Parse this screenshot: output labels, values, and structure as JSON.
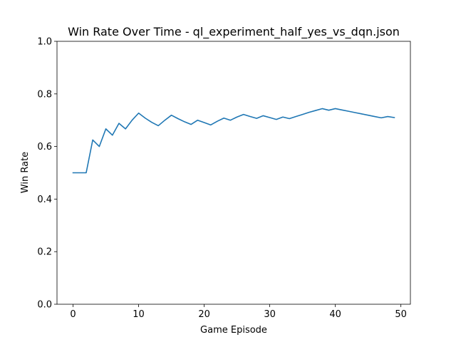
{
  "chart_data": {
    "type": "line",
    "title": "Win Rate Over Time - ql_experiment_half_yes_vs_dqn.json",
    "xlabel": "Game Episode",
    "ylabel": "Win Rate",
    "xlim": [
      -2.45,
      51.45
    ],
    "ylim": [
      0.0,
      1.0
    ],
    "xticks": [
      0,
      10,
      20,
      30,
      40,
      50
    ],
    "xtick_labels": [
      "0",
      "10",
      "20",
      "30",
      "40",
      "50"
    ],
    "yticks": [
      0.0,
      0.2,
      0.4,
      0.6,
      0.8,
      1.0
    ],
    "ytick_labels": [
      "0.0",
      "0.2",
      "0.4",
      "0.6",
      "0.8",
      "1.0"
    ],
    "grid": false,
    "series": [
      {
        "name": "Win Rate",
        "color": "#1f77b4",
        "x": [
          0,
          1,
          2,
          3,
          4,
          5,
          6,
          7,
          8,
          9,
          10,
          11,
          12,
          13,
          14,
          15,
          16,
          17,
          18,
          19,
          20,
          21,
          22,
          23,
          24,
          25,
          26,
          27,
          28,
          29,
          30,
          31,
          32,
          33,
          34,
          35,
          36,
          37,
          38,
          39,
          40,
          41,
          42,
          43,
          44,
          45,
          46,
          47,
          48,
          49
        ],
        "values": [
          0.5,
          0.5,
          0.5,
          0.625,
          0.6,
          0.667,
          0.643,
          0.688,
          0.667,
          0.7,
          0.727,
          0.708,
          0.692,
          0.679,
          0.7,
          0.719,
          0.706,
          0.694,
          0.684,
          0.7,
          0.691,
          0.682,
          0.696,
          0.708,
          0.7,
          0.712,
          0.722,
          0.714,
          0.707,
          0.717,
          0.71,
          0.703,
          0.712,
          0.706,
          0.714,
          0.722,
          0.73,
          0.737,
          0.744,
          0.738,
          0.744,
          0.739,
          0.734,
          0.729,
          0.724,
          0.719,
          0.714,
          0.709,
          0.714,
          0.71
        ]
      }
    ]
  }
}
